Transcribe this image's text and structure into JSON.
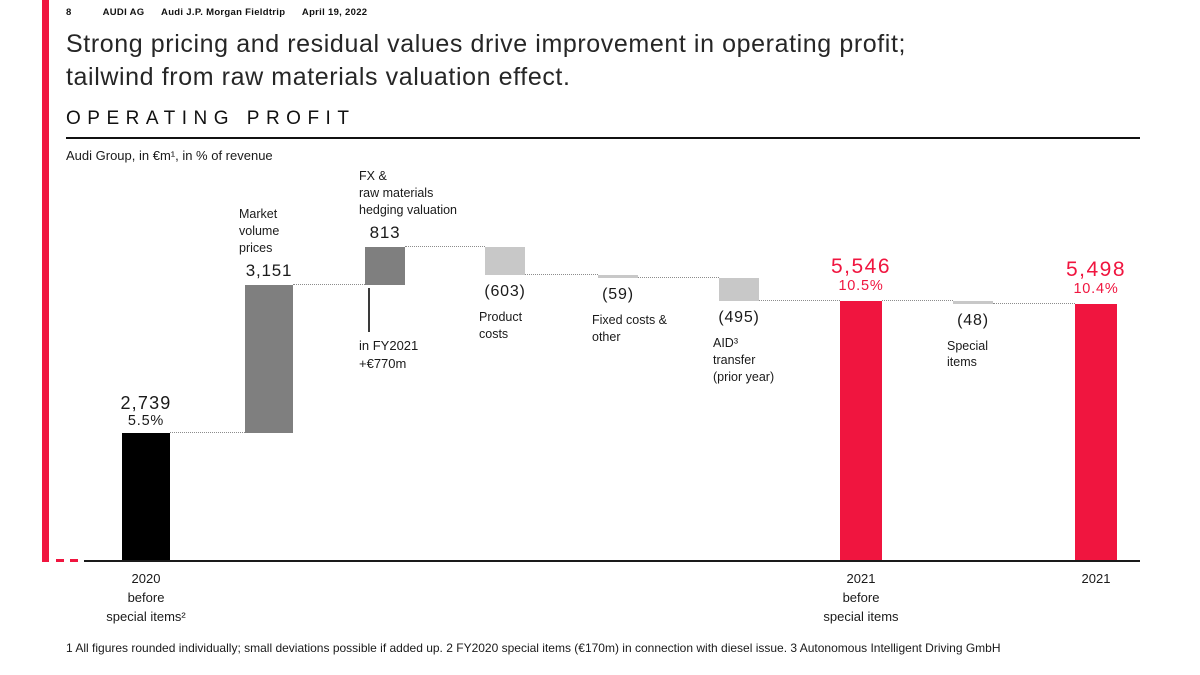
{
  "accent_color": "#f0153f",
  "header": {
    "page_number": "8",
    "company": "AUDI AG",
    "event": "Audi J.P. Morgan Fieldtrip",
    "date": "April 19, 2022"
  },
  "title": "Strong pricing and residual values drive improvement in operating profit;\ntailwind from raw materials valuation effect.",
  "footnote": "1 All figures rounded individually; small deviations possible if added up. 2 FY2020 special items (€170m) in connection with diesel issue. 3 Autonomous Intelligent Driving GmbH",
  "chart_data": {
    "type": "waterfall",
    "title": "OPERATING PROFIT",
    "subtitle": "Audi Group, in €m¹, in % of revenue",
    "unit": "€m",
    "value_range": [
      0,
      6703
    ],
    "grid": false,
    "legend": false,
    "colors": {
      "start_total": "#000000",
      "increase": "#7f7f7f",
      "decrease": "#c8c8c8",
      "result": "#f0153f"
    },
    "bars": [
      {
        "id": "2020-before-special-items",
        "kind": "start",
        "value": 2739,
        "value_label": "2,739",
        "pct_label": "5.5%",
        "axis_label": "2020\nbefore\nspecial items²",
        "color": "#000000"
      },
      {
        "id": "market-volume-prices",
        "kind": "increase",
        "value": 3151,
        "value_label": "3,151",
        "name_label": "Market\nvolume\nprices",
        "color": "#7f7f7f"
      },
      {
        "id": "fx-raw-materials-hedging",
        "kind": "increase",
        "value": 813,
        "value_label": "813",
        "name_label": "FX &\nraw materials\nhedging valuation",
        "annotation": "in FY2021\n+€770m",
        "color": "#7f7f7f"
      },
      {
        "id": "product-costs",
        "kind": "decrease",
        "value": -603,
        "value_label": "(603)",
        "name_label": "Product\ncosts",
        "color": "#c8c8c8"
      },
      {
        "id": "fixed-costs-other",
        "kind": "decrease",
        "value": -59,
        "value_label": "(59)",
        "name_label": "Fixed costs &\nother",
        "color": "#c8c8c8"
      },
      {
        "id": "aid-transfer",
        "kind": "decrease",
        "value": -495,
        "value_label": "(495)",
        "name_label": "AID³\ntransfer\n(prior year)",
        "color": "#c8c8c8"
      },
      {
        "id": "2021-before-special-items",
        "kind": "subtotal",
        "value": 5546,
        "value_label": "5,546",
        "pct_label": "10.5%",
        "axis_label": "2021\nbefore\nspecial items",
        "color": "#f0153f"
      },
      {
        "id": "special-items",
        "kind": "decrease",
        "value": -48,
        "value_label": "(48)",
        "name_label": "Special\nitems",
        "color": "#c8c8c8"
      },
      {
        "id": "2021",
        "kind": "total",
        "value": 5498,
        "value_label": "5,498",
        "pct_label": "10.4%",
        "axis_label": "2021",
        "color": "#f0153f"
      }
    ]
  }
}
